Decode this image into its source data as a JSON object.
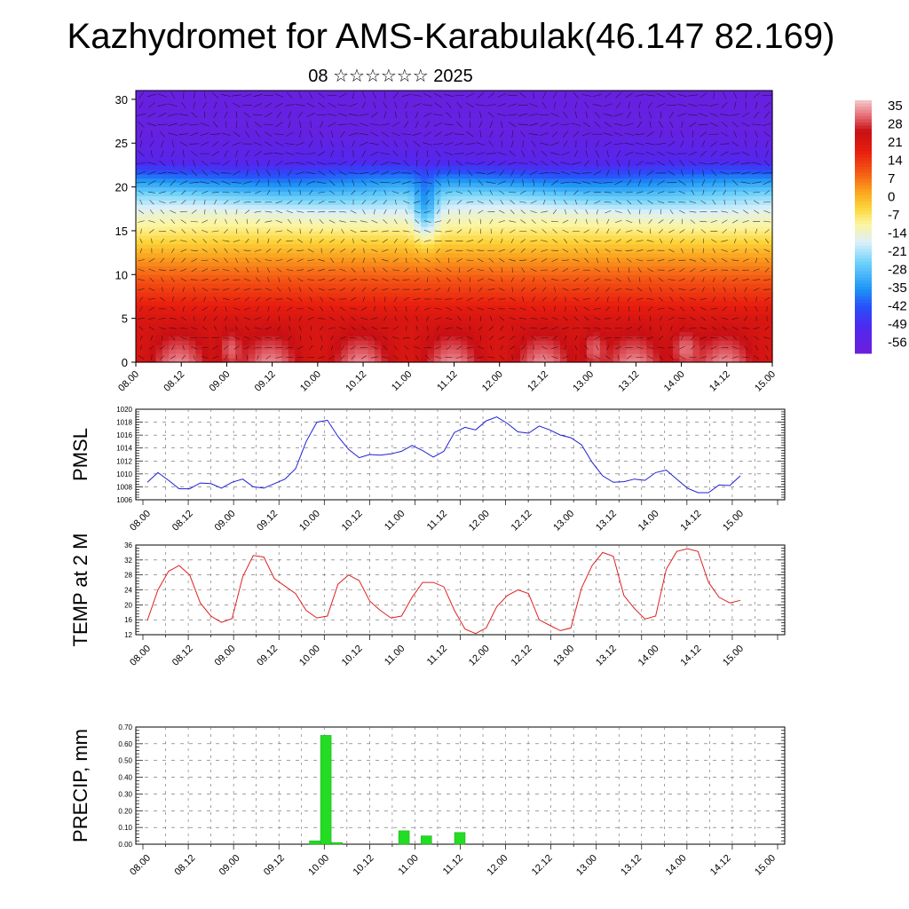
{
  "title": "Kazhydromet for AMS-Karabulak(46.147 82.169)",
  "subtitle": "08 ☆☆☆☆☆☆ 2025",
  "time_ticks": [
    "08.00",
    "08.12",
    "09.00",
    "09.12",
    "10.00",
    "10.12",
    "11.00",
    "11.12",
    "12.00",
    "12.12",
    "13.00",
    "13.12",
    "14.00",
    "14.12",
    "15.00"
  ],
  "chart_data": [
    {
      "type": "heatmap",
      "name_printed": "",
      "x": [
        "08.00",
        "08.12",
        "09.00",
        "09.12",
        "10.00",
        "10.12",
        "11.00",
        "11.12",
        "12.00",
        "12.12",
        "13.00",
        "13.12",
        "14.00",
        "14.12",
        "15.00"
      ],
      "ylim": [
        0,
        31
      ],
      "yticks": [
        0,
        5,
        10,
        15,
        20,
        25,
        30
      ],
      "colorbar": {
        "labels": [
          "35",
          "28",
          "21",
          "14",
          "7",
          "0",
          "-7",
          "-14",
          "-21",
          "-28",
          "-35",
          "-42",
          "-49",
          "-56"
        ],
        "range": [
          -60,
          38
        ]
      },
      "profile": [
        {
          "z": 0,
          "t": 28
        },
        {
          "z": 5,
          "t": 22
        },
        {
          "z": 9,
          "t": 12
        },
        {
          "z": 12,
          "t": 3
        },
        {
          "z": 15,
          "t": -8
        },
        {
          "z": 17,
          "t": -15
        },
        {
          "z": 19,
          "t": -25
        },
        {
          "z": 21,
          "t": -38
        },
        {
          "z": 23,
          "t": -52
        },
        {
          "z": 26,
          "t": -57
        },
        {
          "z": 31,
          "t": -58
        }
      ],
      "overlay": "wind vectors"
    },
    {
      "type": "line",
      "ylabel": "PMSL",
      "ylim": [
        1006,
        1020
      ],
      "yticks": [
        "1006",
        "1008",
        "1010",
        "1012",
        "1014",
        "1016",
        "1018",
        "1020"
      ],
      "color": "#1f1fd6",
      "x": [
        0,
        0.25,
        0.5,
        0.75,
        1,
        1.25,
        1.5,
        1.75,
        2,
        2.25,
        2.5,
        2.75,
        3,
        3.25,
        3.5,
        3.75,
        4,
        4.25,
        4.5,
        4.75,
        5,
        5.25,
        5.5,
        5.75,
        6,
        6.25,
        6.5,
        6.75,
        7,
        7.25,
        7.5,
        7.75,
        8,
        8.25,
        8.5,
        8.75,
        9,
        9.25,
        9.5,
        9.75,
        10,
        10.25,
        10.5,
        10.75,
        11,
        11.25,
        11.5,
        11.75,
        12,
        12.25,
        12.5,
        12.75,
        13,
        13.25,
        13.5,
        13.75,
        14
      ],
      "values": [
        1008.7,
        1010.2,
        1009.0,
        1007.7,
        1007.7,
        1008.6,
        1008.5,
        1007.8,
        1008.7,
        1009.2,
        1008.0,
        1007.8,
        1008.5,
        1009.2,
        1010.8,
        1015.0,
        1018.0,
        1018.3,
        1015.8,
        1013.8,
        1012.5,
        1013.0,
        1012.9,
        1013.1,
        1013.5,
        1014.4,
        1013.6,
        1012.6,
        1013.5,
        1016.4,
        1017.2,
        1016.8,
        1018.2,
        1018.8,
        1017.8,
        1016.5,
        1016.3,
        1017.4,
        1016.8,
        1016.0,
        1015.6,
        1014.5,
        1011.8,
        1009.7,
        1008.7,
        1008.8,
        1009.2,
        1009.0,
        1010.2,
        1010.6,
        1009.2,
        1007.8,
        1007.1,
        1007.1,
        1008.3,
        1008.2,
        1009.7
      ]
    },
    {
      "type": "line",
      "ylabel": "TEMP at 2 M",
      "ylim": [
        12,
        36
      ],
      "yticks": [
        "12",
        "16",
        "20",
        "24",
        "28",
        "32",
        "36"
      ],
      "color": "#e02020",
      "x": [
        0,
        0.25,
        0.5,
        0.75,
        1,
        1.25,
        1.5,
        1.75,
        2,
        2.25,
        2.5,
        2.75,
        3,
        3.25,
        3.5,
        3.75,
        4,
        4.25,
        4.5,
        4.75,
        5,
        5.25,
        5.5,
        5.75,
        6,
        6.25,
        6.5,
        6.75,
        7,
        7.25,
        7.5,
        7.75,
        8,
        8.25,
        8.5,
        8.75,
        9,
        9.25,
        9.5,
        9.75,
        10,
        10.25,
        10.5,
        10.75,
        11,
        11.25,
        11.5,
        11.75,
        12,
        12.25,
        12.5,
        12.75,
        13,
        13.25,
        13.5,
        13.75,
        14
      ],
      "values": [
        15.8,
        24.0,
        29.0,
        30.5,
        28.0,
        20.5,
        17.0,
        15.3,
        16.3,
        27.5,
        33.2,
        32.8,
        27.0,
        25.0,
        23.0,
        18.5,
        16.5,
        17.0,
        25.5,
        28.0,
        26.5,
        21.0,
        18.5,
        16.5,
        17.0,
        22.0,
        26.0,
        26.0,
        24.8,
        18.5,
        13.5,
        12.3,
        13.8,
        19.5,
        22.5,
        24.0,
        23.0,
        16.0,
        14.5,
        13.1,
        13.8,
        24.5,
        30.5,
        34.0,
        33.0,
        22.5,
        19.0,
        16.2,
        17.0,
        29.5,
        34.3,
        35.0,
        34.3,
        26.0,
        22.0,
        20.5,
        21.2
      ]
    },
    {
      "type": "bar",
      "ylabel": "PRECIP, mm",
      "ylim": [
        0,
        0.7
      ],
      "yticks": [
        "0.00",
        "0.10",
        "0.20",
        "0.30",
        "0.40",
        "0.50",
        "0.60",
        "0.70"
      ],
      "color": "#22dd22",
      "bars": [
        {
          "x": 3.75,
          "value": 0.02
        },
        {
          "x": 4.0,
          "value": 0.65
        },
        {
          "x": 4.25,
          "value": 0.01
        },
        {
          "x": 5.75,
          "value": 0.08
        },
        {
          "x": 6.25,
          "value": 0.05
        },
        {
          "x": 7.0,
          "value": 0.07
        }
      ]
    }
  ]
}
